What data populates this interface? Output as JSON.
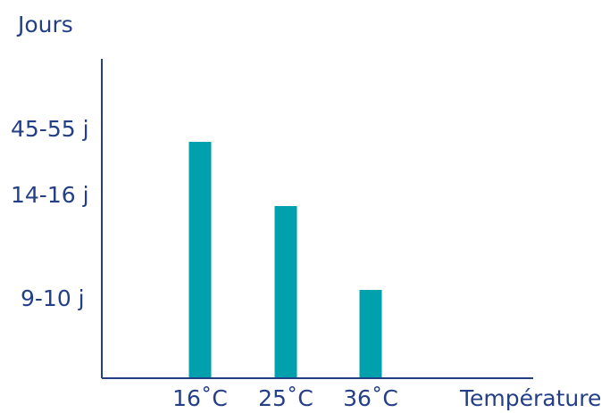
{
  "chart_data": {
    "type": "bar",
    "ylabel": "Jours",
    "xlabel": "Température",
    "categories": [
      "16˚C",
      "25˚C",
      "36˚C"
    ],
    "values": [
      50,
      15,
      9.5
    ],
    "value_labels": [
      "45-55 j",
      "14-16 j",
      "9-10 j"
    ],
    "y_ticks": [
      "45-55 j",
      "14-16 j",
      "9-10 j"
    ],
    "grid": false,
    "legend": "none"
  },
  "colors": {
    "bar": "#00a0ad",
    "axis": "#233f86",
    "text": "#233f86"
  }
}
